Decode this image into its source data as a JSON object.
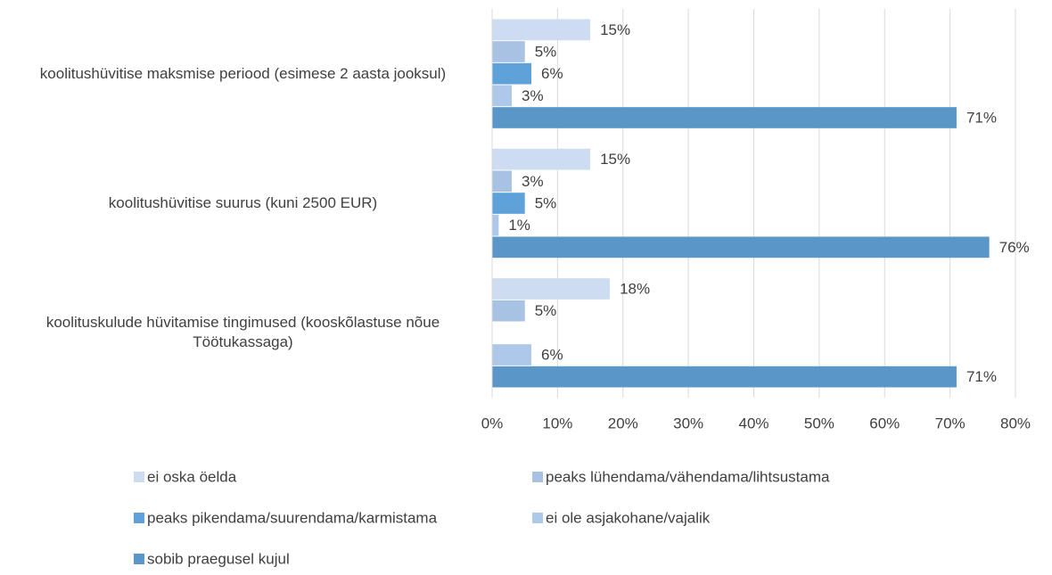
{
  "chart_data": {
    "type": "hbar",
    "categories": [
      "koolitushüvitise maksmise periood (esimese 2 aasta jooksul)",
      "koolitushüvitise suurus (kuni 2500 EUR)",
      "koolituskulude hüvitamise tingimused (kooskõlastuse nõue Töötukassaga)"
    ],
    "series": [
      {
        "name": "ei oska öelda",
        "color": "#cddcf0",
        "values": [
          15,
          15,
          18
        ],
        "value_labels": [
          "15%",
          "15%",
          "18%"
        ]
      },
      {
        "name": "peaks lühendama/vähendama/lihtsustama",
        "color": "#a7c2e3",
        "values": [
          5,
          3,
          5
        ],
        "value_labels": [
          "5%",
          "3%",
          "5%"
        ]
      },
      {
        "name": "peaks pikendama/suurendama/karmistama",
        "color": "#5fa2da",
        "values": [
          6,
          5,
          null
        ],
        "value_labels": [
          "6%",
          "5%",
          null
        ]
      },
      {
        "name": "ei ole asjakohane/vajalik",
        "color": "#adc8e8",
        "values": [
          3,
          1,
          6
        ],
        "value_labels": [
          "3%",
          "1%",
          "6%"
        ]
      },
      {
        "name": "sobib praegusel kujul",
        "color": "#5b96c8",
        "values": [
          71,
          76,
          71
        ],
        "value_labels": [
          "71%",
          "76%",
          "71%"
        ]
      }
    ],
    "xlim": [
      0,
      80
    ],
    "xticks": [
      {
        "value": 0,
        "label": "0%"
      },
      {
        "value": 10,
        "label": "10%"
      },
      {
        "value": 20,
        "label": "20%"
      },
      {
        "value": 30,
        "label": "30%"
      },
      {
        "value": 40,
        "label": "40%"
      },
      {
        "value": 50,
        "label": "50%"
      },
      {
        "value": 60,
        "label": "60%"
      },
      {
        "value": 70,
        "label": "70%"
      },
      {
        "value": 80,
        "label": "80%"
      }
    ],
    "grid": true,
    "legend": "bottom"
  }
}
